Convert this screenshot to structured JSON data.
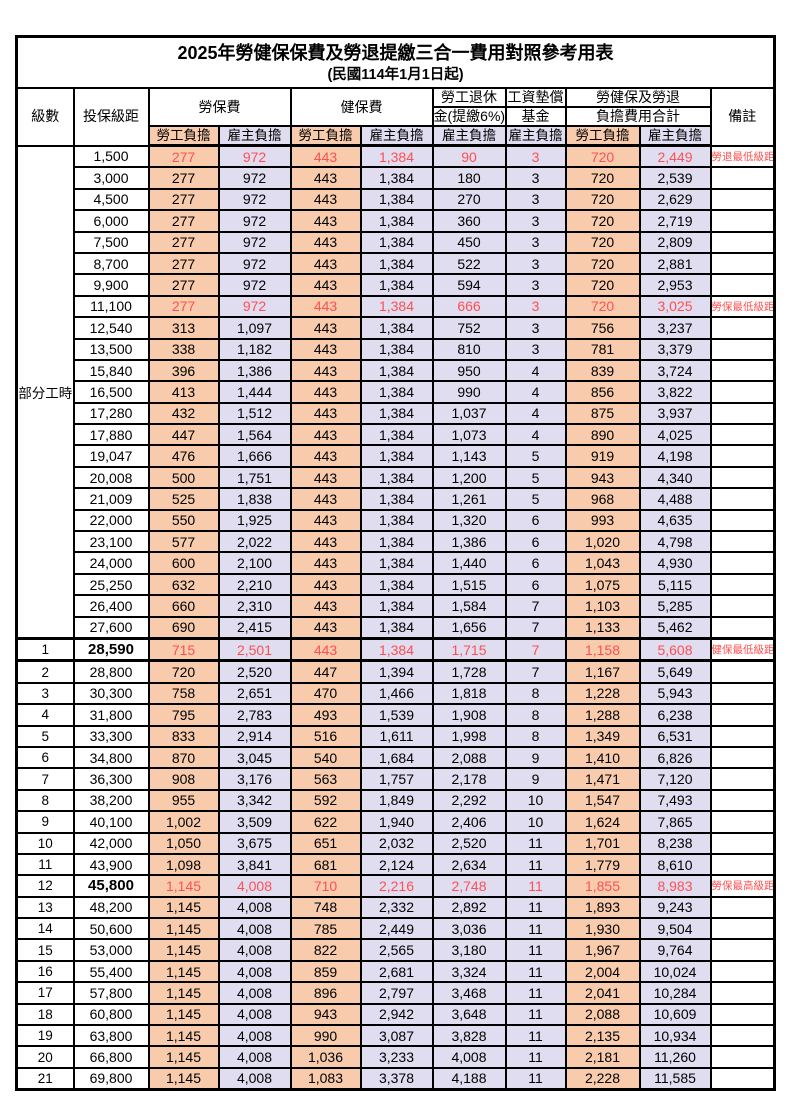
{
  "title": "2025年勞健保保費及勞退提繳三合一費用對照參考用表",
  "subtitle": "(民國114年1月1日起)",
  "colors": {
    "employee_column_bg": "#F8CBAD",
    "employer_column_bg": "#E0DDF0",
    "highlight_text": "#FF5050",
    "border": "#000000"
  },
  "header": {
    "col_level": "級數",
    "col_salary": "投保級距",
    "grp_labor": "勞保費",
    "grp_health": "健保費",
    "grp_pension_line1": "勞工退休",
    "grp_pension_line2": "金(提繳6%)",
    "grp_wagefund_line1": "工資墊償",
    "grp_wagefund_line2": "基金",
    "grp_total_line1": "勞健保及勞退",
    "grp_total_line2": "負擔費用合計",
    "col_note": "備註",
    "employee": "勞工負擔",
    "employer": "雇主負擔"
  },
  "table": {
    "part_time_label": "部分工時",
    "part_time_rowspan": 23,
    "highlight_rows": [
      0,
      7,
      23,
      34
    ],
    "bold_salary_rows": [
      23,
      34
    ],
    "thick_top_rows": [
      23,
      24
    ],
    "row_fields": [
      "level",
      "salary",
      "labor_employee",
      "labor_employer",
      "health_employee",
      "health_employer",
      "pension_employer",
      "wagefund_employer",
      "total_employee",
      "total_employer",
      "note"
    ],
    "rows": [
      [
        "",
        "1,500",
        "277",
        "972",
        "443",
        "1,384",
        "90",
        "3",
        "720",
        "2,449",
        "勞退最低級距"
      ],
      [
        "",
        "3,000",
        "277",
        "972",
        "443",
        "1,384",
        "180",
        "3",
        "720",
        "2,539",
        ""
      ],
      [
        "",
        "4,500",
        "277",
        "972",
        "443",
        "1,384",
        "270",
        "3",
        "720",
        "2,629",
        ""
      ],
      [
        "",
        "6,000",
        "277",
        "972",
        "443",
        "1,384",
        "360",
        "3",
        "720",
        "2,719",
        ""
      ],
      [
        "",
        "7,500",
        "277",
        "972",
        "443",
        "1,384",
        "450",
        "3",
        "720",
        "2,809",
        ""
      ],
      [
        "",
        "8,700",
        "277",
        "972",
        "443",
        "1,384",
        "522",
        "3",
        "720",
        "2,881",
        ""
      ],
      [
        "",
        "9,900",
        "277",
        "972",
        "443",
        "1,384",
        "594",
        "3",
        "720",
        "2,953",
        ""
      ],
      [
        "",
        "11,100",
        "277",
        "972",
        "443",
        "1,384",
        "666",
        "3",
        "720",
        "3,025",
        "勞保最低級距"
      ],
      [
        "",
        "12,540",
        "313",
        "1,097",
        "443",
        "1,384",
        "752",
        "3",
        "756",
        "3,237",
        ""
      ],
      [
        "",
        "13,500",
        "338",
        "1,182",
        "443",
        "1,384",
        "810",
        "3",
        "781",
        "3,379",
        ""
      ],
      [
        "",
        "15,840",
        "396",
        "1,386",
        "443",
        "1,384",
        "950",
        "4",
        "839",
        "3,724",
        ""
      ],
      [
        "",
        "16,500",
        "413",
        "1,444",
        "443",
        "1,384",
        "990",
        "4",
        "856",
        "3,822",
        ""
      ],
      [
        "",
        "17,280",
        "432",
        "1,512",
        "443",
        "1,384",
        "1,037",
        "4",
        "875",
        "3,937",
        ""
      ],
      [
        "",
        "17,880",
        "447",
        "1,564",
        "443",
        "1,384",
        "1,073",
        "4",
        "890",
        "4,025",
        ""
      ],
      [
        "",
        "19,047",
        "476",
        "1,666",
        "443",
        "1,384",
        "1,143",
        "5",
        "919",
        "4,198",
        ""
      ],
      [
        "",
        "20,008",
        "500",
        "1,751",
        "443",
        "1,384",
        "1,200",
        "5",
        "943",
        "4,340",
        ""
      ],
      [
        "",
        "21,009",
        "525",
        "1,838",
        "443",
        "1,384",
        "1,261",
        "5",
        "968",
        "4,488",
        ""
      ],
      [
        "",
        "22,000",
        "550",
        "1,925",
        "443",
        "1,384",
        "1,320",
        "6",
        "993",
        "4,635",
        ""
      ],
      [
        "",
        "23,100",
        "577",
        "2,022",
        "443",
        "1,384",
        "1,386",
        "6",
        "1,020",
        "4,798",
        ""
      ],
      [
        "",
        "24,000",
        "600",
        "2,100",
        "443",
        "1,384",
        "1,440",
        "6",
        "1,043",
        "4,930",
        ""
      ],
      [
        "",
        "25,250",
        "632",
        "2,210",
        "443",
        "1,384",
        "1,515",
        "6",
        "1,075",
        "5,115",
        ""
      ],
      [
        "",
        "26,400",
        "660",
        "2,310",
        "443",
        "1,384",
        "1,584",
        "7",
        "1,103",
        "5,285",
        ""
      ],
      [
        "",
        "27,600",
        "690",
        "2,415",
        "443",
        "1,384",
        "1,656",
        "7",
        "1,133",
        "5,462",
        ""
      ],
      [
        "1",
        "28,590",
        "715",
        "2,501",
        "443",
        "1,384",
        "1,715",
        "7",
        "1,158",
        "5,608",
        "健保最低級距"
      ],
      [
        "2",
        "28,800",
        "720",
        "2,520",
        "447",
        "1,394",
        "1,728",
        "7",
        "1,167",
        "5,649",
        ""
      ],
      [
        "3",
        "30,300",
        "758",
        "2,651",
        "470",
        "1,466",
        "1,818",
        "8",
        "1,228",
        "5,943",
        ""
      ],
      [
        "4",
        "31,800",
        "795",
        "2,783",
        "493",
        "1,539",
        "1,908",
        "8",
        "1,288",
        "6,238",
        ""
      ],
      [
        "5",
        "33,300",
        "833",
        "2,914",
        "516",
        "1,611",
        "1,998",
        "8",
        "1,349",
        "6,531",
        ""
      ],
      [
        "6",
        "34,800",
        "870",
        "3,045",
        "540",
        "1,684",
        "2,088",
        "9",
        "1,410",
        "6,826",
        ""
      ],
      [
        "7",
        "36,300",
        "908",
        "3,176",
        "563",
        "1,757",
        "2,178",
        "9",
        "1,471",
        "7,120",
        ""
      ],
      [
        "8",
        "38,200",
        "955",
        "3,342",
        "592",
        "1,849",
        "2,292",
        "10",
        "1,547",
        "7,493",
        ""
      ],
      [
        "9",
        "40,100",
        "1,002",
        "3,509",
        "622",
        "1,940",
        "2,406",
        "10",
        "1,624",
        "7,865",
        ""
      ],
      [
        "10",
        "42,000",
        "1,050",
        "3,675",
        "651",
        "2,032",
        "2,520",
        "11",
        "1,701",
        "8,238",
        ""
      ],
      [
        "11",
        "43,900",
        "1,098",
        "3,841",
        "681",
        "2,124",
        "2,634",
        "11",
        "1,779",
        "8,610",
        ""
      ],
      [
        "12",
        "45,800",
        "1,145",
        "4,008",
        "710",
        "2,216",
        "2,748",
        "11",
        "1,855",
        "8,983",
        "勞保最高級距"
      ],
      [
        "13",
        "48,200",
        "1,145",
        "4,008",
        "748",
        "2,332",
        "2,892",
        "11",
        "1,893",
        "9,243",
        ""
      ],
      [
        "14",
        "50,600",
        "1,145",
        "4,008",
        "785",
        "2,449",
        "3,036",
        "11",
        "1,930",
        "9,504",
        ""
      ],
      [
        "15",
        "53,000",
        "1,145",
        "4,008",
        "822",
        "2,565",
        "3,180",
        "11",
        "1,967",
        "9,764",
        ""
      ],
      [
        "16",
        "55,400",
        "1,145",
        "4,008",
        "859",
        "2,681",
        "3,324",
        "11",
        "2,004",
        "10,024",
        ""
      ],
      [
        "17",
        "57,800",
        "1,145",
        "4,008",
        "896",
        "2,797",
        "3,468",
        "11",
        "2,041",
        "10,284",
        ""
      ],
      [
        "18",
        "60,800",
        "1,145",
        "4,008",
        "943",
        "2,942",
        "3,648",
        "11",
        "2,088",
        "10,609",
        ""
      ],
      [
        "19",
        "63,800",
        "1,145",
        "4,008",
        "990",
        "3,087",
        "3,828",
        "11",
        "2,135",
        "10,934",
        ""
      ],
      [
        "20",
        "66,800",
        "1,145",
        "4,008",
        "1,036",
        "3,233",
        "4,008",
        "11",
        "2,181",
        "11,260",
        ""
      ],
      [
        "21",
        "69,800",
        "1,145",
        "4,008",
        "1,083",
        "3,378",
        "4,188",
        "11",
        "2,228",
        "11,585",
        ""
      ]
    ]
  }
}
